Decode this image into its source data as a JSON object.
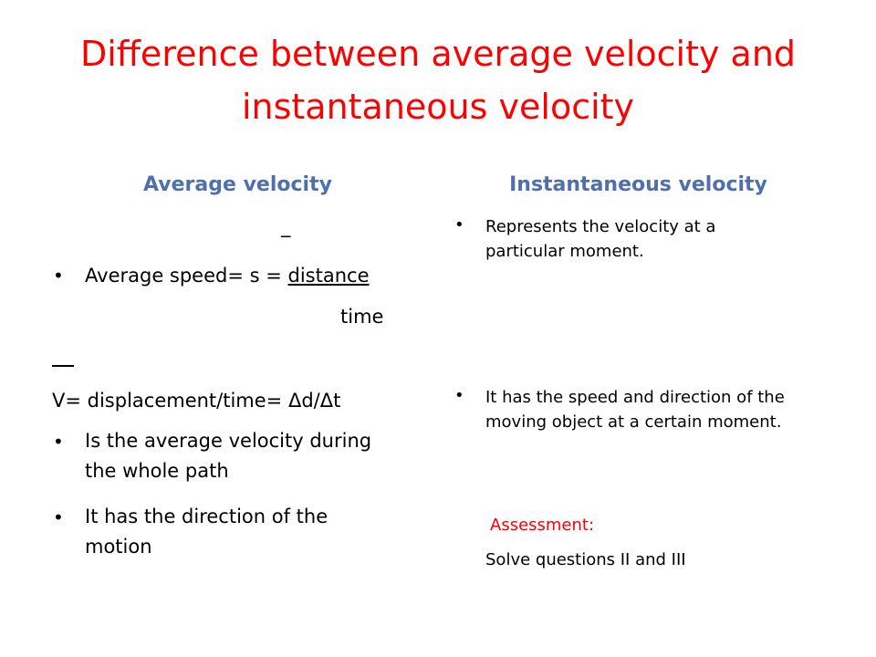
{
  "slide": {
    "title": "Difference between average velocity and instantaneous velocity"
  },
  "left": {
    "heading": "Average velocity",
    "overbar_small": "_",
    "avg_speed_prefix": "Average speed= s = ",
    "avg_speed_numerator": "distance",
    "avg_speed_denominator": "time",
    "velocity_line": "V=  displacement/time= Δd/Δt",
    "bullets": [
      "Is the average velocity during the whole path",
      "It has the direction of the motion"
    ]
  },
  "right": {
    "heading": "Instantaneous velocity",
    "bullets": [
      "Represents the velocity at a particular moment.",
      "It has the speed and direction of the moving object at a certain moment."
    ],
    "assessment_label": "Assessment:",
    "assessment_text": "Solve questions II and III"
  },
  "colors": {
    "title": "#ff0000",
    "heading": "#4f6fae",
    "body": "#000000"
  }
}
